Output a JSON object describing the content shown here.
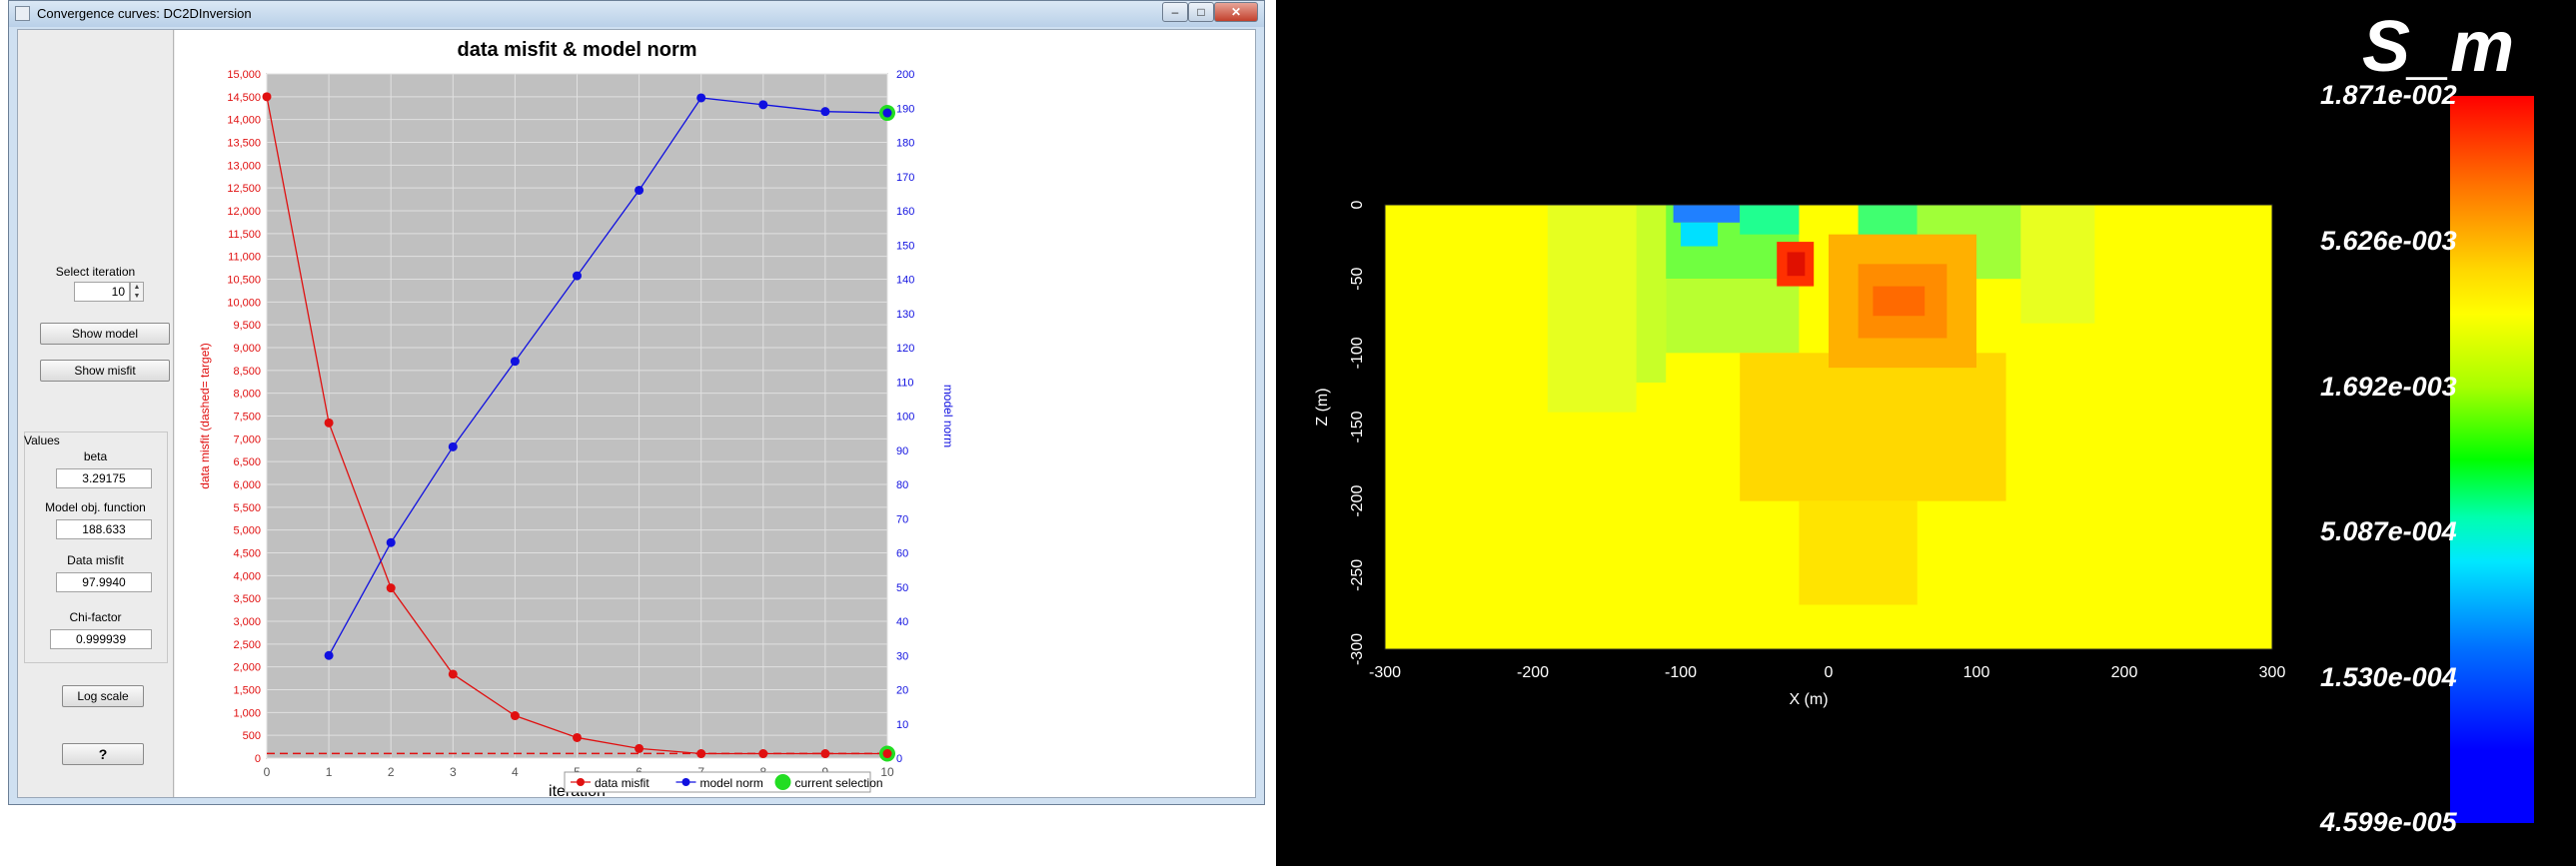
{
  "window": {
    "title": "Convergence curves: DC2DInversion",
    "buttons": {
      "minimize": "–",
      "maximize": "□",
      "close": "✕"
    }
  },
  "sidebar": {
    "select_iteration_label": "Select iteration",
    "iteration_value": "10",
    "show_model_button": "Show model",
    "show_misfit_button": "Show misfit",
    "values_title": "Values",
    "beta_label": "beta",
    "beta_value": "3.29175",
    "model_obj_label": "Model obj. function",
    "model_obj_value": "188.633",
    "data_misfit_label": "Data misfit",
    "data_misfit_value": "97.9940",
    "chi_factor_label": "Chi-factor",
    "chi_factor_value": "0.999939",
    "log_scale_button": "Log scale",
    "help_button": "?"
  },
  "chart_data": [
    {
      "type": "line",
      "title": "data misfit & model norm",
      "xlabel": "iteration",
      "ylabel": "data misfit (dashed= target)",
      "y2label": "model norm",
      "x_ticks": [
        "0",
        "1",
        "2",
        "3",
        "4",
        "5",
        "6",
        "7",
        "8",
        "9",
        "10"
      ],
      "xlim": [
        0,
        10
      ],
      "ylim": [
        0,
        15000
      ],
      "y2lim": [
        0,
        200
      ],
      "y_ticks": [
        "0",
        "500",
        "1,000",
        "1,500",
        "2,000",
        "2,500",
        "3,000",
        "3,500",
        "4,000",
        "4,500",
        "5,000",
        "5,500",
        "6,000",
        "6,500",
        "7,000",
        "7,500",
        "8,000",
        "8,500",
        "9,000",
        "9,500",
        "10,000",
        "10,500",
        "11,000",
        "11,500",
        "12,000",
        "12,500",
        "13,000",
        "13,500",
        "14,000",
        "14,500",
        "15,000"
      ],
      "y2_ticks": [
        "0",
        "10",
        "20",
        "30",
        "40",
        "50",
        "60",
        "70",
        "80",
        "90",
        "100",
        "110",
        "120",
        "130",
        "140",
        "150",
        "160",
        "170",
        "180",
        "190",
        "200"
      ],
      "grid": true,
      "target": 100,
      "series": [
        {
          "name": "data misfit",
          "axis": "left",
          "color": "#e01010",
          "x": [
            0,
            1,
            2,
            3,
            4,
            5,
            6,
            7,
            8,
            9,
            10
          ],
          "values": [
            14500,
            7350,
            3730,
            1840,
            930,
            450,
            210,
            98,
            98,
            98,
            98
          ]
        },
        {
          "name": "model norm",
          "axis": "right",
          "color": "#1010e0",
          "x": [
            1,
            2,
            3,
            4,
            5,
            6,
            7,
            8,
            9,
            10
          ],
          "values": [
            30,
            63,
            91,
            116,
            141,
            166,
            193,
            191,
            189,
            188.6
          ]
        }
      ],
      "selection": {
        "name": "current selection",
        "iteration": 10,
        "color": "#22dd22"
      },
      "legend_placement": "bottom-center",
      "colors": {
        "plot_bg": "#c0c0c0",
        "grid": "#e0e0e0"
      }
    },
    {
      "type": "heatmap",
      "title": "S_m",
      "xlabel": "X (m)",
      "ylabel": "Z (m)",
      "xlim": [
        -300,
        300
      ],
      "ylim": [
        -300,
        0
      ],
      "x_ticks": [
        "-300",
        "-200",
        "-100",
        "0",
        "100",
        "200",
        "300"
      ],
      "y_ticks": [
        "0",
        "-50",
        "-100",
        "-150",
        "-200",
        "-250",
        "-300"
      ],
      "colorbar_labels": [
        "1.871e-002",
        "5.626e-003",
        "1.692e-003",
        "5.087e-004",
        "1.530e-004",
        "4.599e-005"
      ],
      "colormap": "jet"
    }
  ]
}
